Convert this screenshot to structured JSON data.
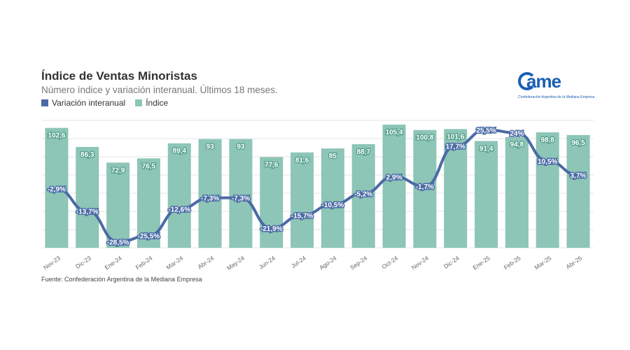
{
  "header": {
    "title": "Índice de Ventas Minoristas",
    "subtitle": "Número índice y variación interanual. Últimos 18 meses."
  },
  "legend": {
    "line_label": "Variación interanual",
    "bar_label": "Índice"
  },
  "logo": {
    "word": "ame",
    "tagline": "Confederación Argentina de la Mediana Empresa"
  },
  "footer": {
    "source": "Fuente: Confederación Argentina de la Mediana Empresa"
  },
  "colors": {
    "bar": "#8dc5b6",
    "line": "#4a6aa5",
    "grid": "#e6e6e6"
  },
  "chart_data": {
    "type": "bar",
    "categories": [
      "Nov-23",
      "Dic-23",
      "Ene-24",
      "Feb-24",
      "Mar-24",
      "Abr-24",
      "May-24",
      "Jun-24",
      "Jul-24",
      "Ago-24",
      "Sep-24",
      "Oct-24",
      "Nov-24",
      "Dic-24",
      "Ene-25",
      "Feb-25",
      "Mar-25",
      "Abr-25"
    ],
    "series": [
      {
        "name": "Índice",
        "type": "bar",
        "values": [
          102.6,
          86.3,
          72.9,
          76.5,
          89.4,
          93,
          93,
          77.6,
          81.6,
          85,
          88.7,
          105.4,
          100.8,
          101.6,
          91.4,
          94.8,
          98.8,
          96.5
        ],
        "labels": [
          "102,6",
          "86,3",
          "72,9",
          "76,5",
          "89,4",
          "93",
          "93",
          "77,6",
          "81,6",
          "85",
          "88,7",
          "105,4",
          "100,8",
          "101,6",
          "91,4",
          "94,8",
          "98,8",
          "96,5"
        ]
      },
      {
        "name": "Variación interanual",
        "type": "line",
        "values": [
          -2.9,
          -13.7,
          -28.5,
          -25.5,
          -12.6,
          -7.3,
          -7.3,
          -21.9,
          -15.7,
          -10.5,
          -5.2,
          2.9,
          -1.7,
          17.7,
          25.5,
          24,
          10.5,
          3.7
        ],
        "labels": [
          "-2,9%",
          "-13,7%",
          "-28,5%",
          "-25,5%",
          "-12,6%",
          "-7,3%",
          "-7,3%",
          "-21,9%",
          "-15,7%",
          "-10,5%",
          "-5,2%",
          "2,9%",
          "-1,7%",
          "17,7%",
          "25,5%",
          "24%",
          "10,5%",
          "3,7%"
        ]
      }
    ],
    "bar_ylim": [
      0,
      115
    ],
    "line_ylim": [
      -30,
      30
    ],
    "grid": true
  }
}
